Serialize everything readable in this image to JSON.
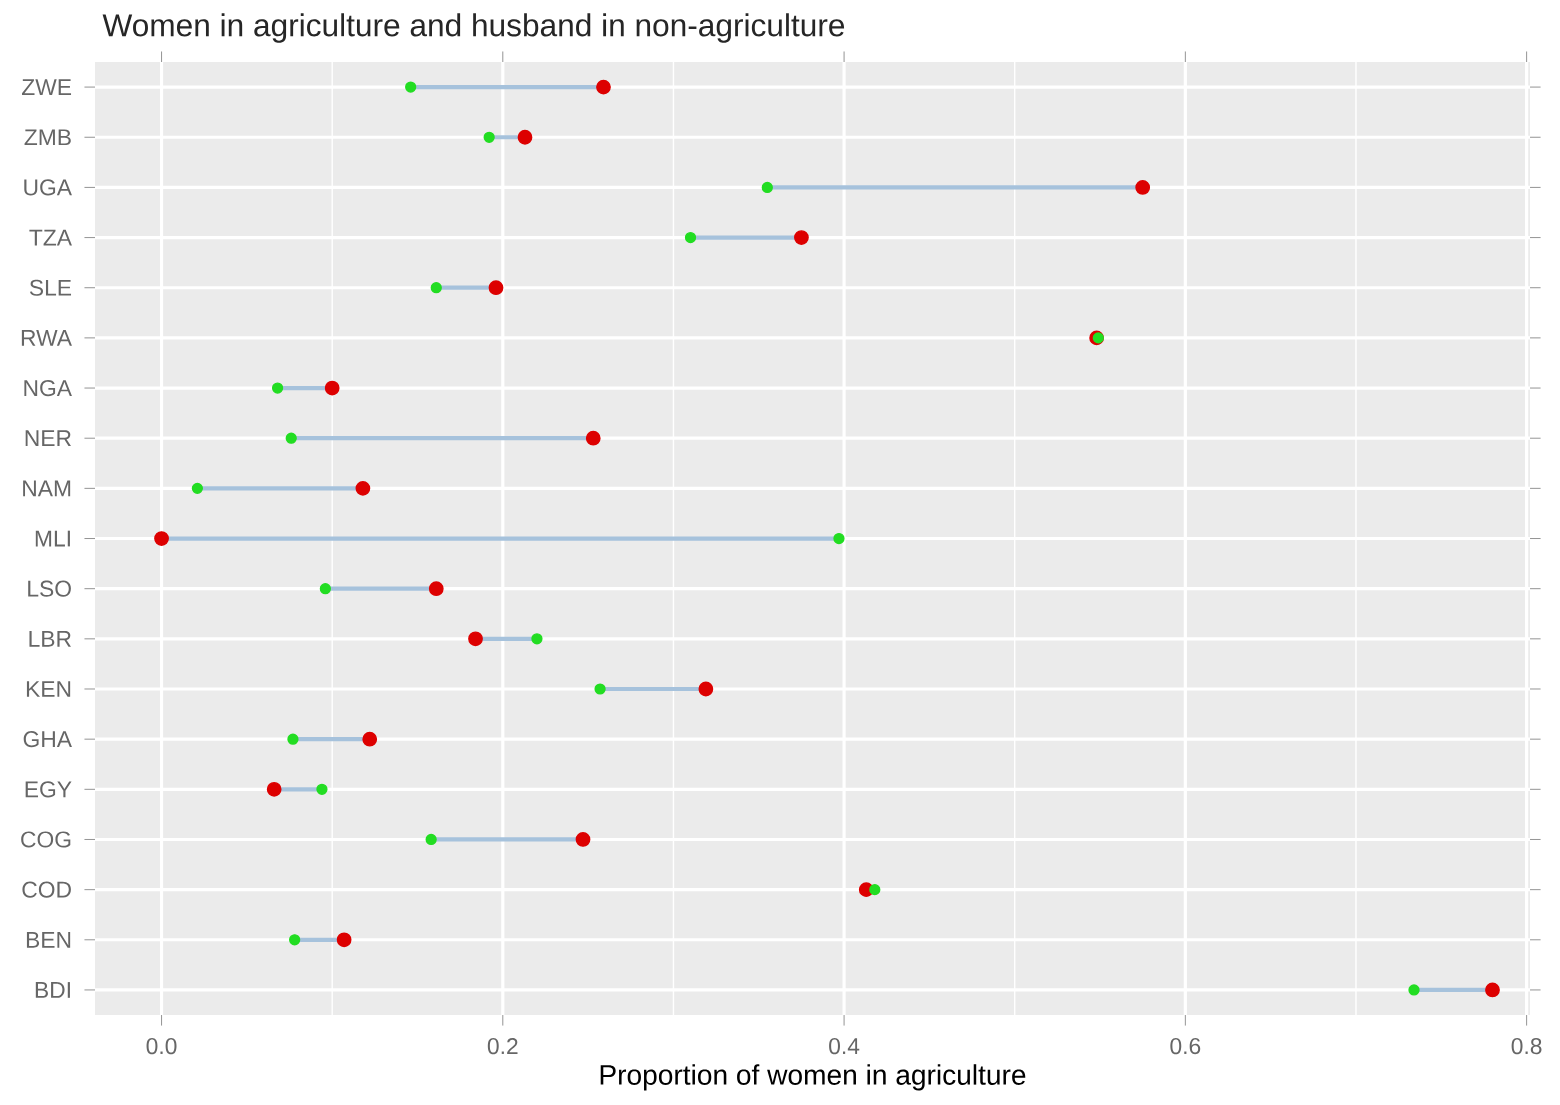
{
  "chart_data": {
    "type": "scatter",
    "orientation": "horizontal",
    "title": "Women in agriculture and husband in non-agriculture",
    "xlabel": "Proportion of women in agriculture",
    "categories": [
      "ZWE",
      "ZMB",
      "UGA",
      "TZA",
      "SLE",
      "RWA",
      "NGA",
      "NER",
      "NAM",
      "MLI",
      "LSO",
      "LBR",
      "KEN",
      "GHA",
      "EGY",
      "COG",
      "COD",
      "BEN",
      "BDI"
    ],
    "series": [
      {
        "color": "#22dd22",
        "values": [
          0.146,
          0.192,
          0.355,
          0.31,
          0.161,
          0.549,
          0.068,
          0.076,
          0.021,
          0.397,
          0.096,
          0.22,
          0.257,
          0.077,
          0.094,
          0.158,
          0.418,
          0.078,
          0.734
        ]
      },
      {
        "color": "#dd0000",
        "values": [
          0.259,
          0.213,
          0.575,
          0.375,
          0.196,
          0.548,
          0.1,
          0.253,
          0.118,
          0.0,
          0.161,
          0.184,
          0.319,
          0.122,
          0.066,
          0.247,
          0.413,
          0.107,
          0.78
        ]
      }
    ],
    "xlim": [
      -0.039,
      0.802
    ],
    "xticks": [
      {
        "value": 0,
        "label": "0.0"
      },
      0.2,
      0.4,
      0.6,
      0.8
    ],
    "grid": true
  }
}
